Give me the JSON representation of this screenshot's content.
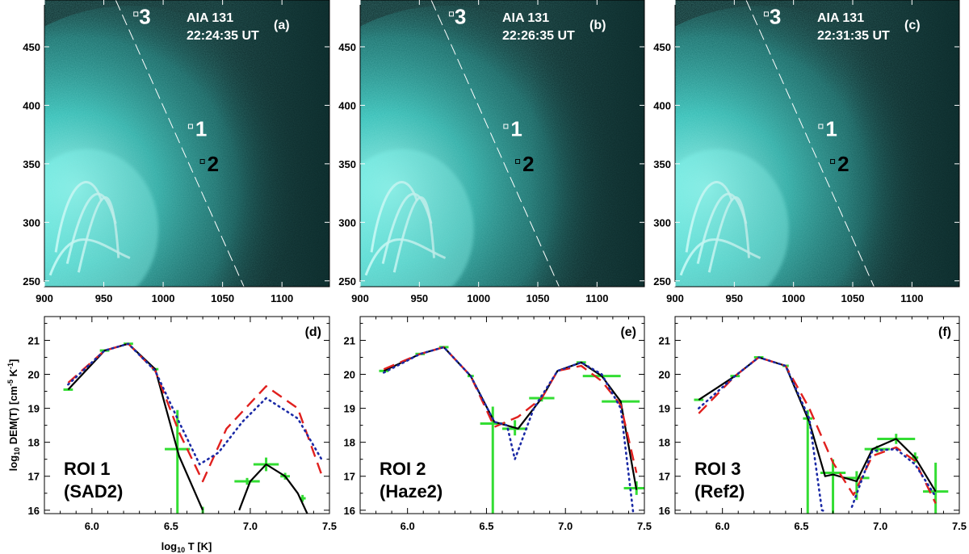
{
  "figure": "AIA 131 images with DEM curves",
  "colors": {
    "image_base": "#0b2a2a",
    "image_glow": "#3fe6de",
    "image_bright": "#d9fffb",
    "dem_solid": "#000000",
    "dem_dashed": "#e0201e",
    "dem_dotted": "#1b2aa6",
    "error_cross": "#33dd33"
  },
  "images": [
    {
      "panel": "(a)",
      "instrument": "AIA 131",
      "time": "22:24:35 UT",
      "markers": [
        "1",
        "2",
        "3"
      ]
    },
    {
      "panel": "(b)",
      "instrument": "AIA 131",
      "time": "22:26:35 UT",
      "markers": [
        "1",
        "2",
        "3"
      ]
    },
    {
      "panel": "(c)",
      "instrument": "AIA 131",
      "time": "22:31:35 UT",
      "markers": [
        "1",
        "2",
        "3"
      ]
    }
  ],
  "image_axes": {
    "xticks": [
      "900",
      "950",
      "1000",
      "1050",
      "1100"
    ],
    "yticks": [
      "250",
      "300",
      "350",
      "400",
      "450"
    ],
    "xlim": [
      900,
      1140
    ],
    "ylim": [
      245,
      490
    ]
  },
  "chart_data": [
    {
      "type": "line",
      "panel": "(d)",
      "roi": "ROI 1",
      "roi_sub": "(SAD2)",
      "xlabel": "log10 T [K]",
      "ylabel": "log10 DEM(T) [cm-5 K-1]",
      "xlim": [
        5.7,
        7.5
      ],
      "ylim": [
        15.9,
        21.7
      ],
      "xticks": [
        "6.0",
        "6.5",
        "7.0",
        "7.5"
      ],
      "yticks": [
        "16",
        "17",
        "18",
        "19",
        "20",
        "21"
      ],
      "series": [
        {
          "name": "solid",
          "style": "solid",
          "segments": [
            [
              [
                5.85,
                19.55
              ],
              [
                6.08,
                20.7
              ],
              [
                6.23,
                20.9
              ],
              [
                6.4,
                20.15
              ],
              [
                6.55,
                17.6
              ],
              [
                6.7,
                16.0
              ]
            ],
            [
              [
                6.93,
                16.0
              ],
              [
                7.0,
                16.85
              ],
              [
                7.1,
                17.35
              ],
              [
                7.22,
                17.0
              ],
              [
                7.3,
                16.5
              ],
              [
                7.36,
                15.9
              ]
            ]
          ]
        },
        {
          "name": "dashed",
          "style": "dashed",
          "segments": [
            [
              [
                5.85,
                19.75
              ],
              [
                6.08,
                20.7
              ],
              [
                6.23,
                20.9
              ],
              [
                6.4,
                20.1
              ],
              [
                6.55,
                18.3
              ],
              [
                6.7,
                16.85
              ],
              [
                6.85,
                18.4
              ],
              [
                7.1,
                19.65
              ],
              [
                7.3,
                19.0
              ],
              [
                7.45,
                17.05
              ]
            ]
          ]
        },
        {
          "name": "dotted",
          "style": "dotted",
          "segments": [
            [
              [
                5.85,
                19.7
              ],
              [
                6.08,
                20.7
              ],
              [
                6.23,
                20.9
              ],
              [
                6.4,
                20.1
              ],
              [
                6.55,
                18.6
              ],
              [
                6.68,
                17.35
              ],
              [
                6.8,
                17.7
              ],
              [
                6.95,
                18.6
              ],
              [
                7.1,
                19.3
              ],
              [
                7.3,
                18.7
              ],
              [
                7.45,
                17.5
              ]
            ]
          ]
        }
      ],
      "errors": [
        {
          "x": 5.85,
          "y": 19.55,
          "xerr": 0.03,
          "ylo": 19.55,
          "yhi": 19.55
        },
        {
          "x": 6.08,
          "y": 20.7,
          "xerr": 0.03,
          "ylo": 20.7,
          "yhi": 20.7
        },
        {
          "x": 6.23,
          "y": 20.9,
          "xerr": 0.03,
          "ylo": 20.9,
          "yhi": 20.9
        },
        {
          "x": 6.4,
          "y": 20.15,
          "xerr": 0.02,
          "ylo": 20.15,
          "yhi": 20.15
        },
        {
          "x": 6.54,
          "y": 17.8,
          "xerr": 0.08,
          "ylo": 15.9,
          "yhi": 18.95
        },
        {
          "x": 6.7,
          "y": 16.0,
          "xerr": 0.0,
          "ylo": 15.9,
          "yhi": 16.1
        },
        {
          "x": 6.98,
          "y": 16.85,
          "xerr": 0.08,
          "ylo": 16.75,
          "yhi": 16.95
        },
        {
          "x": 7.1,
          "y": 17.35,
          "xerr": 0.08,
          "ylo": 17.15,
          "yhi": 17.55
        },
        {
          "x": 7.22,
          "y": 17.0,
          "xerr": 0.03,
          "ylo": 16.9,
          "yhi": 17.1
        },
        {
          "x": 7.33,
          "y": 16.35,
          "xerr": 0.02,
          "ylo": 16.25,
          "yhi": 16.45
        }
      ]
    },
    {
      "type": "line",
      "panel": "(e)",
      "roi": "ROI 2",
      "roi_sub": "(Haze2)",
      "xlim": [
        5.7,
        7.5
      ],
      "ylim": [
        15.9,
        21.7
      ],
      "xticks": [
        "6.0",
        "6.5",
        "7.0",
        "7.5"
      ],
      "yticks": [
        "16",
        "17",
        "18",
        "19",
        "20",
        "21"
      ],
      "series": [
        {
          "name": "solid",
          "style": "solid",
          "segments": [
            [
              [
                5.85,
                20.1
              ],
              [
                6.08,
                20.6
              ],
              [
                6.23,
                20.8
              ],
              [
                6.4,
                19.95
              ],
              [
                6.55,
                18.6
              ],
              [
                6.7,
                18.4
              ],
              [
                6.85,
                19.3
              ],
              [
                6.95,
                20.1
              ],
              [
                7.1,
                20.35
              ],
              [
                7.23,
                19.95
              ],
              [
                7.35,
                19.2
              ],
              [
                7.45,
                16.6
              ]
            ]
          ]
        },
        {
          "name": "dashed",
          "style": "dashed",
          "segments": [
            [
              [
                5.85,
                20.15
              ],
              [
                6.08,
                20.6
              ],
              [
                6.23,
                20.8
              ],
              [
                6.4,
                19.95
              ],
              [
                6.55,
                18.45
              ],
              [
                6.7,
                18.75
              ],
              [
                6.85,
                19.3
              ],
              [
                6.95,
                20.1
              ],
              [
                7.1,
                20.25
              ],
              [
                7.23,
                19.8
              ],
              [
                7.35,
                19.1
              ],
              [
                7.45,
                17.1
              ]
            ]
          ]
        },
        {
          "name": "dotted",
          "style": "dotted",
          "segments": [
            [
              [
                5.85,
                20.05
              ],
              [
                6.08,
                20.6
              ],
              [
                6.23,
                20.8
              ],
              [
                6.4,
                19.95
              ],
              [
                6.55,
                18.6
              ],
              [
                6.63,
                18.5
              ],
              [
                6.68,
                17.5
              ],
              [
                6.8,
                19.0
              ],
              [
                6.95,
                20.1
              ],
              [
                7.1,
                20.35
              ],
              [
                7.23,
                20.0
              ],
              [
                7.35,
                19.0
              ],
              [
                7.43,
                15.9
              ]
            ]
          ]
        }
      ],
      "errors": [
        {
          "x": 5.85,
          "y": 20.1,
          "xerr": 0.03,
          "ylo": 20.1,
          "yhi": 20.1
        },
        {
          "x": 6.08,
          "y": 20.6,
          "xerr": 0.03,
          "ylo": 20.6,
          "yhi": 20.6
        },
        {
          "x": 6.23,
          "y": 20.8,
          "xerr": 0.03,
          "ylo": 20.8,
          "yhi": 20.8
        },
        {
          "x": 6.4,
          "y": 19.95,
          "xerr": 0.02,
          "ylo": 19.95,
          "yhi": 19.95
        },
        {
          "x": 6.54,
          "y": 18.55,
          "xerr": 0.08,
          "ylo": 15.9,
          "yhi": 19.05
        },
        {
          "x": 6.68,
          "y": 18.4,
          "xerr": 0.08,
          "ylo": 18.2,
          "yhi": 18.65
        },
        {
          "x": 6.85,
          "y": 19.3,
          "xerr": 0.08,
          "ylo": 19.2,
          "yhi": 19.4
        },
        {
          "x": 7.1,
          "y": 20.35,
          "xerr": 0.03,
          "ylo": 20.35,
          "yhi": 20.35
        },
        {
          "x": 7.23,
          "y": 19.95,
          "xerr": 0.12,
          "ylo": 19.95,
          "yhi": 19.95
        },
        {
          "x": 7.35,
          "y": 19.2,
          "xerr": 0.12,
          "ylo": 19.2,
          "yhi": 19.2
        },
        {
          "x": 7.45,
          "y": 16.65,
          "xerr": 0.08,
          "ylo": 16.45,
          "yhi": 16.85
        }
      ]
    },
    {
      "type": "line",
      "panel": "(f)",
      "roi": "ROI 3",
      "roi_sub": "(Ref2)",
      "xlim": [
        5.7,
        7.5
      ],
      "ylim": [
        15.9,
        21.7
      ],
      "xticks": [
        "6.0",
        "6.5",
        "7.0",
        "7.5"
      ],
      "yticks": [
        "16",
        "17",
        "18",
        "19",
        "20",
        "21"
      ],
      "series": [
        {
          "name": "solid",
          "style": "solid",
          "segments": [
            [
              [
                5.85,
                19.25
              ],
              [
                6.08,
                19.95
              ],
              [
                6.23,
                20.5
              ],
              [
                6.4,
                20.25
              ],
              [
                6.55,
                18.6
              ],
              [
                6.65,
                17.0
              ],
              [
                6.7,
                17.05
              ],
              [
                6.85,
                16.85
              ],
              [
                6.95,
                17.8
              ],
              [
                7.1,
                18.1
              ],
              [
                7.22,
                17.55
              ],
              [
                7.35,
                16.55
              ]
            ]
          ]
        },
        {
          "name": "dashed",
          "style": "dashed",
          "segments": [
            [
              [
                5.85,
                18.85
              ],
              [
                6.08,
                19.95
              ],
              [
                6.23,
                20.5
              ],
              [
                6.4,
                20.25
              ],
              [
                6.55,
                19.0
              ],
              [
                6.7,
                17.4
              ],
              [
                6.83,
                16.45
              ],
              [
                6.95,
                17.6
              ],
              [
                7.1,
                17.85
              ],
              [
                7.22,
                17.45
              ],
              [
                7.35,
                16.2
              ]
            ]
          ]
        },
        {
          "name": "dotted",
          "style": "dotted",
          "segments": [
            [
              [
                5.85,
                19.0
              ],
              [
                6.08,
                19.95
              ],
              [
                6.23,
                20.5
              ],
              [
                6.4,
                20.25
              ],
              [
                6.55,
                18.7
              ],
              [
                6.63,
                16.0
              ],
              [
                6.66,
                15.95
              ]
            ],
            [
              [
                6.82,
                16.1
              ],
              [
                6.95,
                17.75
              ],
              [
                7.1,
                17.8
              ],
              [
                7.22,
                17.35
              ],
              [
                7.35,
                16.4
              ]
            ]
          ]
        }
      ],
      "errors": [
        {
          "x": 5.85,
          "y": 19.25,
          "xerr": 0.03,
          "ylo": 19.25,
          "yhi": 19.25
        },
        {
          "x": 6.08,
          "y": 19.95,
          "xerr": 0.03,
          "ylo": 19.95,
          "yhi": 19.95
        },
        {
          "x": 6.23,
          "y": 20.5,
          "xerr": 0.03,
          "ylo": 20.5,
          "yhi": 20.5
        },
        {
          "x": 6.4,
          "y": 20.25,
          "xerr": 0.02,
          "ylo": 20.25,
          "yhi": 20.25
        },
        {
          "x": 6.54,
          "y": 18.7,
          "xerr": 0.03,
          "ylo": 15.9,
          "yhi": 18.95
        },
        {
          "x": 6.7,
          "y": 17.1,
          "xerr": 0.08,
          "ylo": 15.9,
          "yhi": 17.5
        },
        {
          "x": 6.85,
          "y": 16.95,
          "xerr": 0.08,
          "ylo": 16.3,
          "yhi": 17.15
        },
        {
          "x": 6.98,
          "y": 17.8,
          "xerr": 0.08,
          "ylo": 17.7,
          "yhi": 17.9
        },
        {
          "x": 7.1,
          "y": 18.1,
          "xerr": 0.12,
          "ylo": 17.95,
          "yhi": 18.25
        },
        {
          "x": 7.22,
          "y": 17.55,
          "xerr": 0.02,
          "ylo": 17.4,
          "yhi": 17.7
        },
        {
          "x": 7.35,
          "y": 16.55,
          "xerr": 0.08,
          "ylo": 15.9,
          "yhi": 17.4
        }
      ]
    }
  ],
  "dem_axes": {
    "ylabel_main": "log",
    "ylabel_sub": "10",
    "ylabel_rest": " DEM(T) [cm",
    "ylabel_exp1": "-5",
    "ylabel_mid": " K",
    "ylabel_exp2": "-1",
    "ylabel_end": "]",
    "xlabel_main": "log",
    "xlabel_sub": "10",
    "xlabel_rest": " T [K]"
  }
}
